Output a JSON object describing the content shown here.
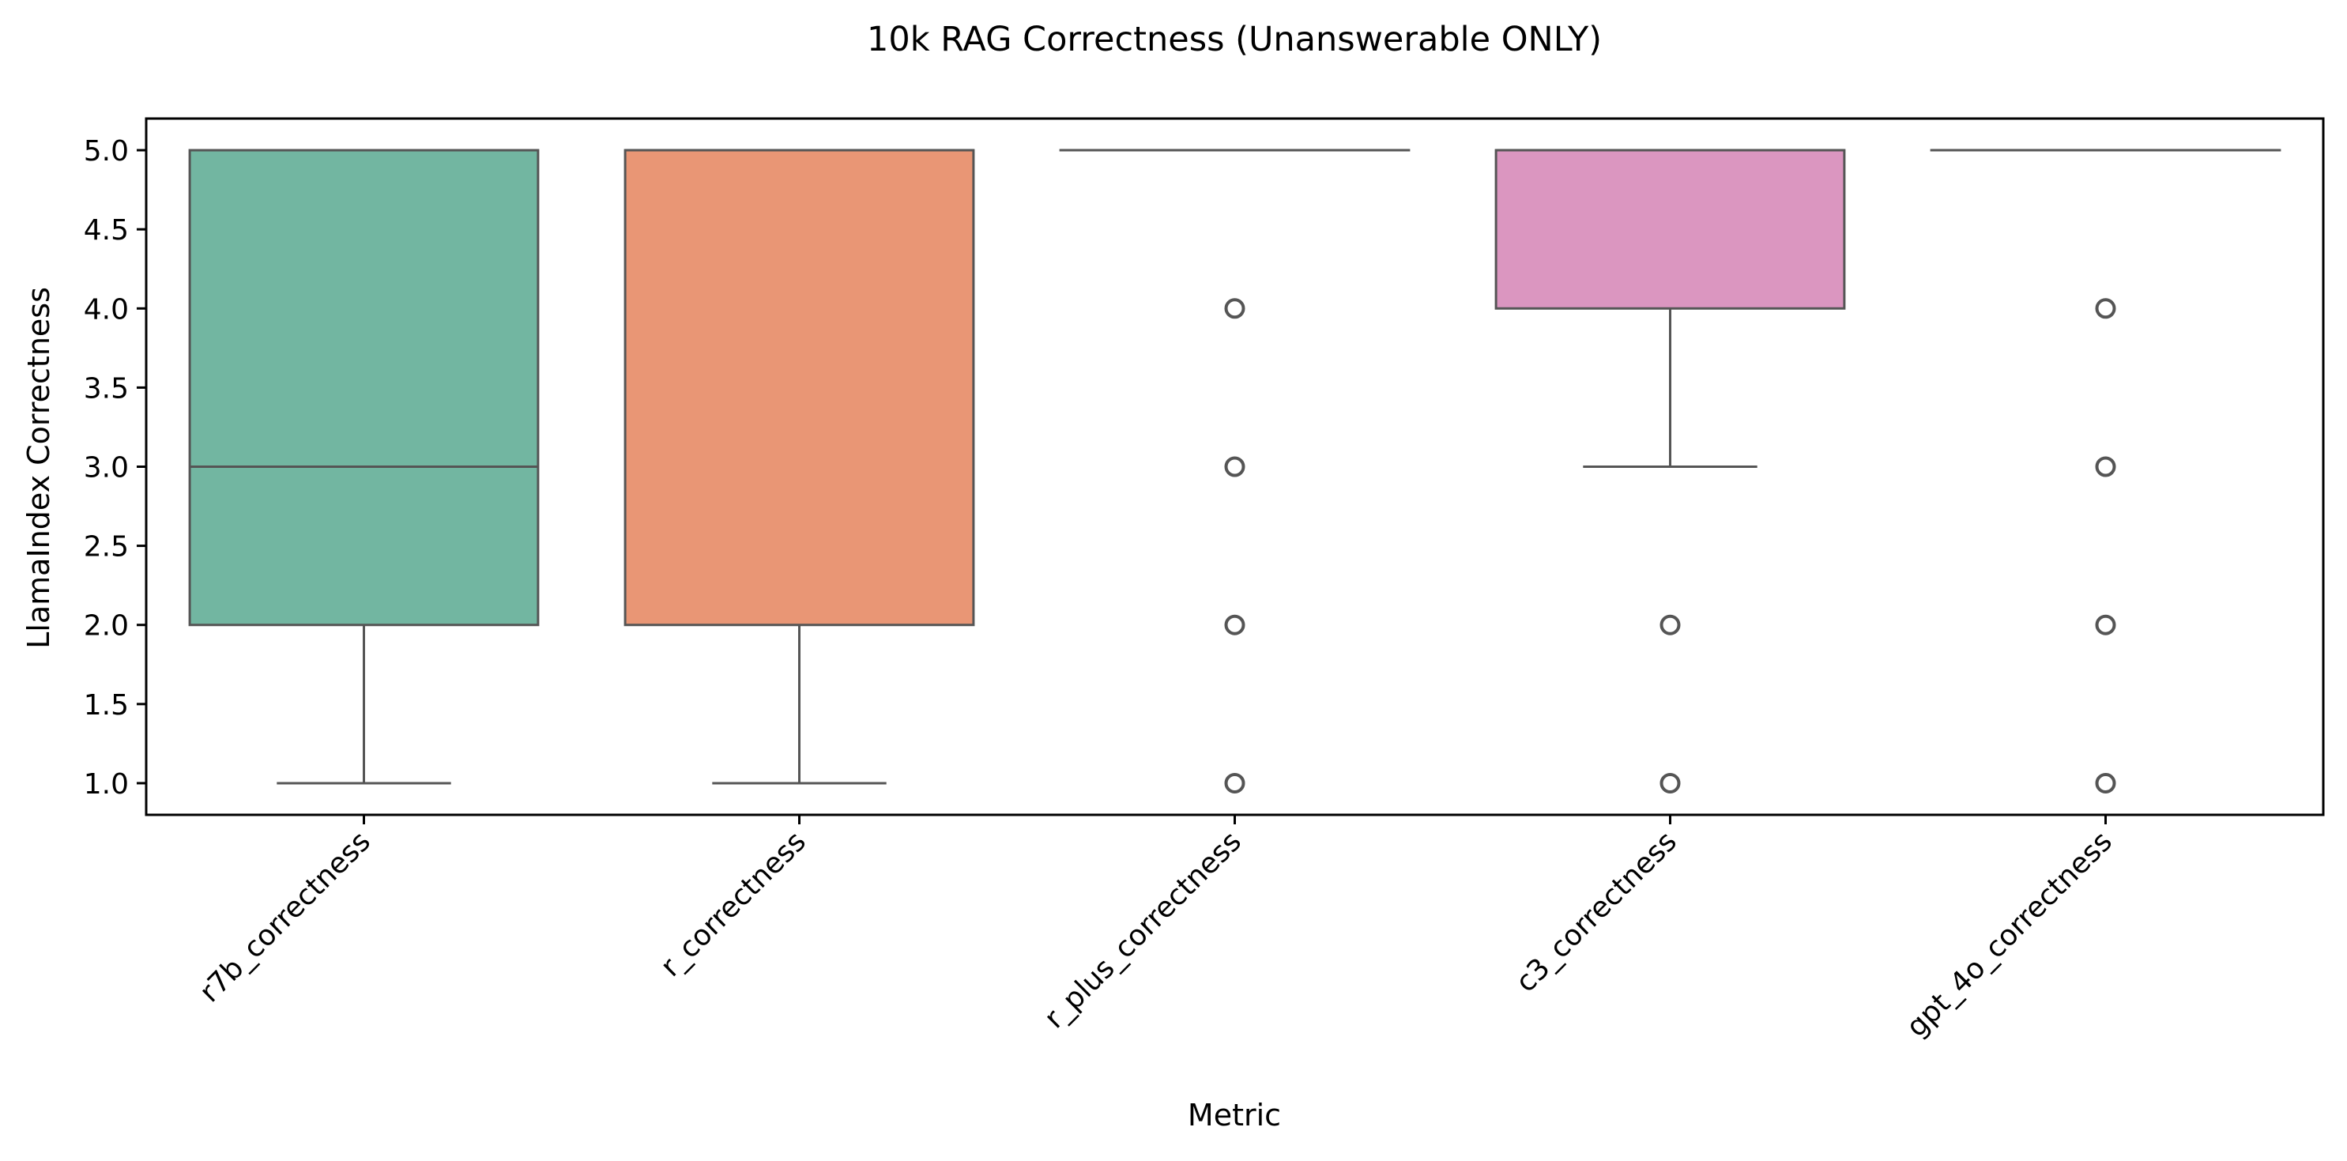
{
  "chart_data": {
    "type": "box",
    "title": "10k RAG Correctness (Unanswerable ONLY)",
    "xlabel": "Metric",
    "ylabel": "LlamaIndex Correctness",
    "ylim": [
      0.8,
      5.2
    ],
    "yticks": [
      "1.0",
      "1.5",
      "2.0",
      "2.5",
      "3.0",
      "3.5",
      "4.0",
      "4.5",
      "5.0"
    ],
    "grid": false,
    "legend": "none",
    "categories": [
      "r7b_correctness",
      "r_correctness",
      "r_plus_correctness",
      "c3_correctness",
      "gpt_4o_correctness"
    ],
    "boxes": [
      {
        "category": "r7b_correctness",
        "whisker_low": 1.0,
        "q1": 2.0,
        "median": 3.0,
        "q3": 5.0,
        "whisker_high": 5.0,
        "outliers": [],
        "color": "#72b6a1"
      },
      {
        "category": "r_correctness",
        "whisker_low": 1.0,
        "q1": 2.0,
        "median": 5.0,
        "q3": 5.0,
        "whisker_high": 5.0,
        "outliers": [],
        "color": "#e99675"
      },
      {
        "category": "r_plus_correctness",
        "whisker_low": 5.0,
        "q1": 5.0,
        "median": 5.0,
        "q3": 5.0,
        "whisker_high": 5.0,
        "outliers": [
          1.0,
          2.0,
          3.0,
          4.0
        ],
        "color": "#95a3c6"
      },
      {
        "category": "c3_correctness",
        "whisker_low": 3.0,
        "q1": 4.0,
        "median": 5.0,
        "q3": 5.0,
        "whisker_high": 5.0,
        "outliers": [
          1.0,
          2.0
        ],
        "color": "#db96c0"
      },
      {
        "category": "gpt_4o_correctness",
        "whisker_low": 5.0,
        "q1": 5.0,
        "median": 5.0,
        "q3": 5.0,
        "whisker_high": 5.0,
        "outliers": [
          1.0,
          2.0,
          3.0,
          4.0
        ],
        "color": "#a6d854"
      }
    ],
    "colors": {
      "line": "#555555",
      "axis": "#000000"
    }
  }
}
